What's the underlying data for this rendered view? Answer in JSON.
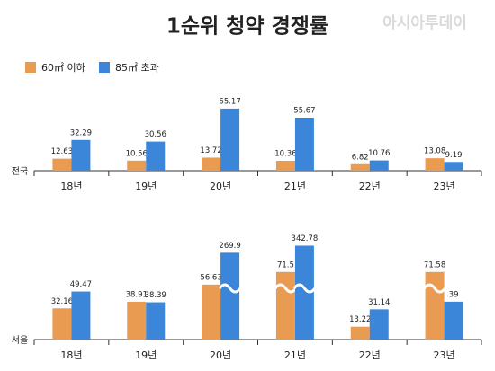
{
  "title": "1순위 청약 경쟁률",
  "watermark": "아시아투데이",
  "chart_data": [
    {
      "type": "bar",
      "label": "전국",
      "categories": [
        "18년",
        "19년",
        "20년",
        "21년",
        "22년",
        "23년"
      ],
      "series": [
        {
          "name": "60㎡ 이하",
          "color": "#e99b52",
          "values": [
            12.63,
            10.56,
            13.72,
            10.36,
            6.82,
            13.08
          ]
        },
        {
          "name": "85㎡ 초과",
          "color": "#3b86d8",
          "values": [
            32.29,
            30.56,
            65.17,
            55.67,
            10.76,
            9.19
          ]
        }
      ]
    },
    {
      "type": "bar",
      "label": "서울",
      "categories": [
        "18년",
        "19년",
        "20년",
        "21년",
        "22년",
        "23년"
      ],
      "series": [
        {
          "color": "#e99b52",
          "values": [
            32.16,
            38.91,
            56.63,
            71.5,
            13.22,
            71.58
          ]
        },
        {
          "color": "#3b86d8",
          "values": [
            49.47,
            38.39,
            269.9,
            342.78,
            31.14,
            39
          ]
        }
      ]
    }
  ]
}
